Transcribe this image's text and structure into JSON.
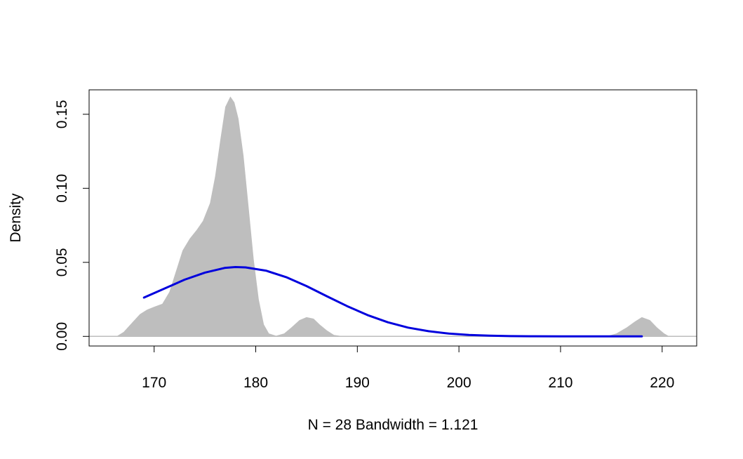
{
  "chart_data": {
    "type": "area",
    "title": "",
    "xlabel": "N = 28   Bandwidth = 1.121",
    "ylabel": "Density",
    "xlim": [
      163.6,
      223.4
    ],
    "ylim": [
      -0.0065,
      0.1665
    ],
    "x_ticks": [
      170,
      180,
      190,
      200,
      210,
      220
    ],
    "y_ticks": [
      0.0,
      0.05,
      0.1,
      0.15
    ],
    "x_tick_labels": [
      "170",
      "180",
      "190",
      "200",
      "210",
      "220"
    ],
    "y_tick_labels": [
      "0.00",
      "0.05",
      "0.10",
      "0.15"
    ],
    "grid": false,
    "legend": "none",
    "colors": {
      "density_fill": "#bebebe",
      "normal_curve": "#0000dd",
      "baseline": "#bebebe",
      "axis": "#000000"
    },
    "series": [
      {
        "kind": "density-area",
        "x": [
          166.3,
          167.0,
          167.8,
          168.6,
          169.3,
          170.0,
          170.8,
          171.5,
          172.2,
          172.8,
          173.5,
          174.2,
          174.8,
          175.5,
          176.0,
          176.5,
          177.0,
          177.5,
          177.9,
          178.3,
          178.8,
          179.3,
          179.8,
          180.3,
          180.8,
          181.3,
          182.0,
          182.8,
          183.5,
          184.3,
          185.0,
          185.7,
          186.3,
          187.0,
          187.7,
          188.5,
          189.1,
          189.6,
          190.5,
          200.0,
          210.0,
          214.5,
          215.5,
          216.5,
          217.3,
          218.0,
          218.8,
          219.5,
          220.2,
          220.7
        ],
        "y": [
          0.0,
          0.003,
          0.009,
          0.015,
          0.018,
          0.02,
          0.022,
          0.03,
          0.045,
          0.058,
          0.066,
          0.072,
          0.078,
          0.09,
          0.108,
          0.132,
          0.155,
          0.162,
          0.158,
          0.147,
          0.122,
          0.087,
          0.052,
          0.025,
          0.008,
          0.002,
          0.0004,
          0.002,
          0.006,
          0.011,
          0.013,
          0.012,
          0.008,
          0.004,
          0.001,
          0.0002,
          0.0,
          0.0,
          0.0,
          0.0,
          0.0,
          0.0,
          0.002,
          0.006,
          0.01,
          0.013,
          0.011,
          0.006,
          0.002,
          0.0
        ]
      },
      {
        "kind": "normal-curve",
        "x": [
          169,
          171,
          173,
          175,
          177,
          178,
          179,
          181,
          183,
          185,
          187,
          189,
          191,
          193,
          195,
          197,
          199,
          201,
          203,
          205,
          207,
          210,
          214,
          218
        ],
        "y": [
          0.0262,
          0.0322,
          0.0383,
          0.0431,
          0.0463,
          0.0468,
          0.0466,
          0.0444,
          0.04,
          0.034,
          0.0271,
          0.0204,
          0.0144,
          0.0095,
          0.0059,
          0.0035,
          0.0019,
          0.001,
          0.0005,
          0.0002,
          0.0001,
          0.0,
          0.0,
          0.0
        ]
      }
    ]
  }
}
